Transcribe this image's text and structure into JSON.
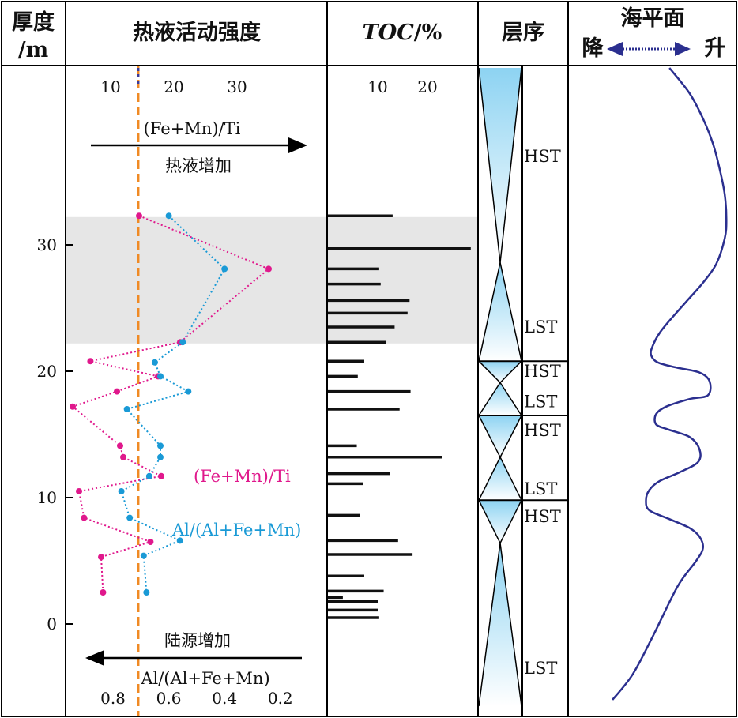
{
  "headers": {
    "thickness_line1": "厚度",
    "thickness_line2": "/m",
    "intensity": "热液活动强度",
    "toc": "TOC/%",
    "toc_italic": "TOC",
    "toc_unit": "/%",
    "sequence": "层序",
    "sea_level": "海平面",
    "fall": "降",
    "rise": "升"
  },
  "annotations": {
    "fe_mn_ti_top": "(Fe+Mn)/Ti",
    "hydrothermal_increase": "热液增加",
    "terrigenous_increase": "陆源增加",
    "al_ratio_bottom": "Al/(Al+Fe+Mn)",
    "series_fe_label": "(Fe+Mn)/Ti",
    "series_al_label": "Al/(Al+Fe+Mn)"
  },
  "colors": {
    "fe_series": "#e0188c",
    "al_series": "#1a9ad6",
    "threshold": "#f08a24",
    "sea_curve": "#2b2f8f",
    "shading": "#e6e6e6",
    "frame": "#000000"
  },
  "chart_data": {
    "type": "line",
    "depth_axis": {
      "label": "厚度/m",
      "ticks": [
        0,
        10,
        20,
        30
      ],
      "range": [
        -6,
        44
      ]
    },
    "top_axis": {
      "label": "(Fe+Mn)/Ti",
      "ticks": [
        10,
        20,
        30
      ],
      "range": [
        3,
        37
      ]
    },
    "bottom_axis": {
      "label": "Al/(Al+Fe+Mn)",
      "ticks": [
        0.8,
        0.6,
        0.4,
        0.2
      ],
      "range": [
        0.97,
        0.12
      ],
      "reversed": true
    },
    "threshold": {
      "axis": "top",
      "value": 14.4,
      "style": "dashed"
    },
    "shaded_interval": [
      22.2,
      32.2
    ],
    "series": [
      {
        "name": "(Fe+Mn)/Ti",
        "axis": "top",
        "points": [
          {
            "x": 14.5,
            "y": 32.3
          },
          {
            "x": 35.0,
            "y": 28.1
          },
          {
            "x": 21.0,
            "y": 22.3
          },
          {
            "x": 6.8,
            "y": 20.8
          },
          {
            "x": 17.5,
            "y": 19.6
          },
          {
            "x": 11.0,
            "y": 18.4
          },
          {
            "x": 4.0,
            "y": 17.2
          },
          {
            "x": 11.5,
            "y": 14.1
          },
          {
            "x": 12.0,
            "y": 13.2
          },
          {
            "x": 18.0,
            "y": 11.7
          },
          {
            "x": 5.0,
            "y": 10.5
          },
          {
            "x": 5.8,
            "y": 8.4
          },
          {
            "x": 16.3,
            "y": 6.5
          },
          {
            "x": 8.5,
            "y": 5.3
          },
          {
            "x": 8.8,
            "y": 2.5
          }
        ]
      },
      {
        "name": "Al/(Al+Fe+Mn)",
        "axis": "bottom",
        "points": [
          {
            "x": 0.6,
            "y": 32.3
          },
          {
            "x": 0.4,
            "y": 28.1
          },
          {
            "x": 0.55,
            "y": 22.3
          },
          {
            "x": 0.65,
            "y": 20.7
          },
          {
            "x": 0.63,
            "y": 19.6
          },
          {
            "x": 0.53,
            "y": 18.4
          },
          {
            "x": 0.75,
            "y": 17.0
          },
          {
            "x": 0.63,
            "y": 14.1
          },
          {
            "x": 0.63,
            "y": 13.2
          },
          {
            "x": 0.67,
            "y": 11.7
          },
          {
            "x": 0.77,
            "y": 10.5
          },
          {
            "x": 0.74,
            "y": 8.4
          },
          {
            "x": 0.56,
            "y": 6.6
          },
          {
            "x": 0.69,
            "y": 5.4
          },
          {
            "x": 0.68,
            "y": 2.5
          }
        ]
      }
    ],
    "toc": {
      "label": "TOC/%",
      "ticks": [
        10,
        20
      ],
      "range": [
        0,
        29
      ],
      "bars": [
        {
          "y": 32.3,
          "value": 13.0
        },
        {
          "y": 29.7,
          "value": 28.7
        },
        {
          "y": 28.1,
          "value": 10.3
        },
        {
          "y": 26.9,
          "value": 10.6
        },
        {
          "y": 25.6,
          "value": 16.4
        },
        {
          "y": 24.6,
          "value": 16.0
        },
        {
          "y": 23.5,
          "value": 13.4
        },
        {
          "y": 22.3,
          "value": 11.7
        },
        {
          "y": 20.8,
          "value": 7.3
        },
        {
          "y": 19.6,
          "value": 6.0
        },
        {
          "y": 18.4,
          "value": 16.6
        },
        {
          "y": 17.0,
          "value": 14.4
        },
        {
          "y": 14.1,
          "value": 5.8
        },
        {
          "y": 13.2,
          "value": 23.0
        },
        {
          "y": 11.9,
          "value": 12.4
        },
        {
          "y": 11.1,
          "value": 7.1
        },
        {
          "y": 8.6,
          "value": 6.4
        },
        {
          "y": 6.6,
          "value": 14.1
        },
        {
          "y": 5.5,
          "value": 17.0
        },
        {
          "y": 3.8,
          "value": 7.3
        },
        {
          "y": 2.6,
          "value": 11.2
        },
        {
          "y": 2.1,
          "value": 3.0
        },
        {
          "y": 1.8,
          "value": 10.0
        },
        {
          "y": 1.1,
          "value": 10.0
        },
        {
          "y": 0.5,
          "value": 10.3
        }
      ]
    },
    "sequences": [
      {
        "name": "LST",
        "bottom": -6.5,
        "top": 6.4,
        "label_y": -3.5
      },
      {
        "name": "HST",
        "bottom": 6.4,
        "top": 9.8,
        "label_y": 8.5
      },
      {
        "name": "LST",
        "bottom": 9.8,
        "top": 13.2,
        "label_y": 10.7
      },
      {
        "name": "HST",
        "bottom": 13.2,
        "top": 16.5,
        "label_y": 15.3
      },
      {
        "name": "LST",
        "bottom": 16.5,
        "top": 19.1,
        "label_y": 17.6
      },
      {
        "name": "HST",
        "bottom": 19.1,
        "top": 20.8,
        "label_y": 20.0
      },
      {
        "name": "LST",
        "bottom": 20.8,
        "top": 28.6,
        "label_y": 23.5
      },
      {
        "name": "HST",
        "bottom": 28.6,
        "top": 44.0,
        "label_y": 37.0
      }
    ],
    "sequence_boundaries": [
      20.8,
      16.5,
      9.8
    ],
    "sea_level_curve": [
      [
        60,
        44
      ],
      [
        72,
        42
      ],
      [
        80,
        40
      ],
      [
        86,
        38
      ],
      [
        90,
        36
      ],
      [
        93,
        34
      ],
      [
        94,
        32
      ],
      [
        93,
        30.5
      ],
      [
        88,
        28.5
      ],
      [
        80,
        27
      ],
      [
        70,
        25.5
      ],
      [
        60,
        24
      ],
      [
        54,
        23
      ],
      [
        50,
        22
      ],
      [
        49,
        21.3
      ],
      [
        53,
        20.7
      ],
      [
        64,
        20.3
      ],
      [
        78,
        19.9
      ],
      [
        84,
        19.2
      ],
      [
        83,
        18.1
      ],
      [
        72,
        17.8
      ],
      [
        58,
        17.2
      ],
      [
        52,
        16.6
      ],
      [
        52,
        15.8
      ],
      [
        59,
        15.4
      ],
      [
        72,
        14.8
      ],
      [
        78,
        13.8
      ],
      [
        77,
        12.8
      ],
      [
        66,
        12.0
      ],
      [
        54,
        11.3
      ],
      [
        48,
        10.6
      ],
      [
        46,
        9.8
      ],
      [
        48,
        9.0
      ],
      [
        60,
        8.3
      ],
      [
        72,
        7.6
      ],
      [
        78,
        6.9
      ],
      [
        80,
        6.0
      ],
      [
        76,
        5.0
      ],
      [
        65,
        3.0
      ],
      [
        50,
        -1.0
      ],
      [
        38,
        -4.0
      ],
      [
        26,
        -6.0
      ]
    ]
  }
}
